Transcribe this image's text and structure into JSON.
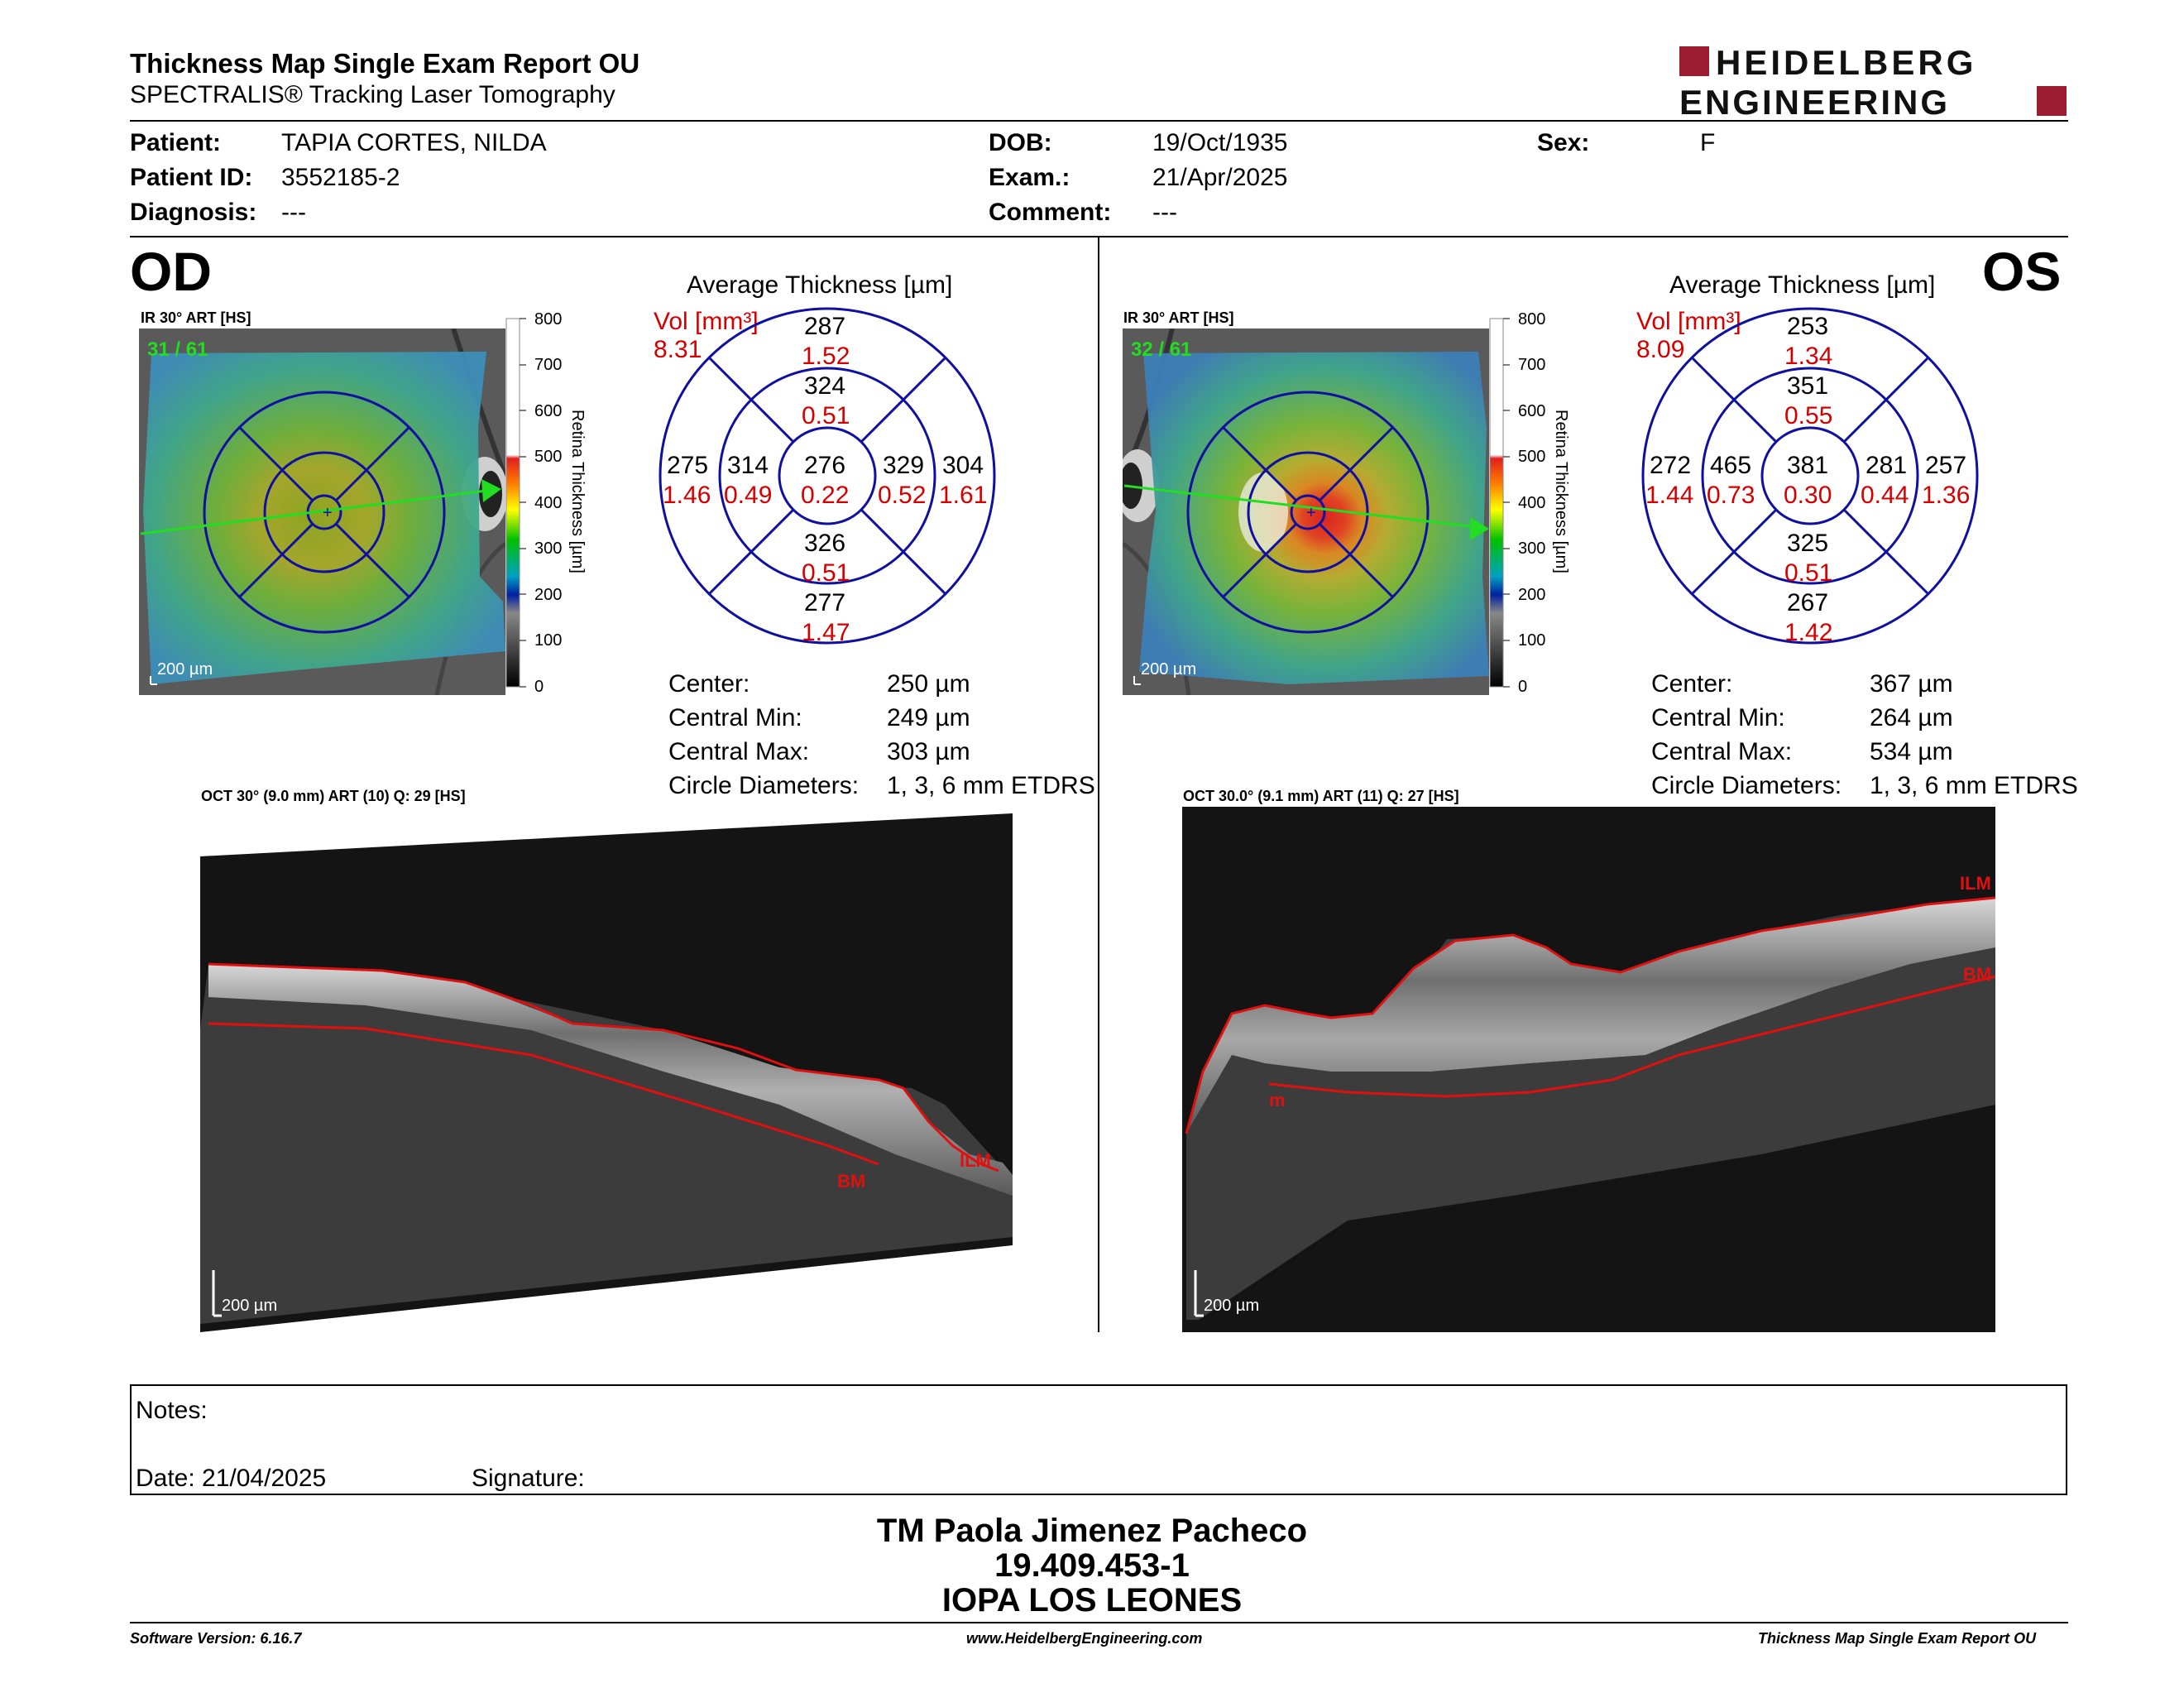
{
  "header": {
    "title": "Thickness Map Single Exam Report OU",
    "subtitle": "SPECTRALIS® Tracking Laser Tomography",
    "logo_line1": "HEIDELBERG",
    "logo_line2": "ENGINEERING"
  },
  "patient": {
    "patient_label": "Patient:",
    "patient_value": "TAPIA CORTES, NILDA",
    "id_label": "Patient ID:",
    "id_value": "3552185-2",
    "diagnosis_label": "Diagnosis:",
    "diagnosis_value": "---",
    "dob_label": "DOB:",
    "dob_value": "19/Oct/1935",
    "exam_label": "Exam.:",
    "exam_value": "21/Apr/2025",
    "comment_label": "Comment:",
    "comment_value": "---",
    "sex_label": "Sex:",
    "sex_value": "F"
  },
  "od": {
    "eye": "OD",
    "ir_label": "IR 30° ART [HS]",
    "frames": "31 / 61",
    "scale": "200 µm",
    "avg_title": "Average Thickness [µm]",
    "vol_label": "Vol [mm³]",
    "vol_total": "8.31",
    "grid": {
      "outer_top": "287",
      "outer_top_vol": "1.52",
      "inner_top": "324",
      "inner_top_vol": "0.51",
      "outer_left": "275",
      "outer_left_vol": "1.46",
      "inner_left": "314",
      "inner_left_vol": "0.49",
      "center": "276",
      "center_vol": "0.22",
      "inner_right": "329",
      "inner_right_vol": "0.52",
      "outer_right": "304",
      "outer_right_vol": "1.61",
      "inner_bottom": "326",
      "inner_bottom_vol": "0.51",
      "outer_bottom": "277",
      "outer_bottom_vol": "1.47"
    },
    "stats": {
      "center_label": "Center:",
      "center_value": "250 µm",
      "min_label": "Central Min:",
      "min_value": "249 µm",
      "max_label": "Central Max:",
      "max_value": "303 µm",
      "diam_label": "Circle Diameters:",
      "diam_value": "1, 3, 6 mm ETDRS"
    },
    "oct_label": "OCT 30° (9.0 mm) ART (10) Q: 29 [HS]",
    "oct_scale": "200 µm",
    "ilm": "ILM",
    "bm": "BM"
  },
  "os": {
    "eye": "OS",
    "ir_label": "IR 30° ART [HS]",
    "frames": "32 / 61",
    "scale": "200 µm",
    "avg_title": "Average Thickness [µm]",
    "vol_label": "Vol [mm³]",
    "vol_total": "8.09",
    "grid": {
      "outer_top": "253",
      "outer_top_vol": "1.34",
      "inner_top": "351",
      "inner_top_vol": "0.55",
      "outer_left": "272",
      "outer_left_vol": "1.44",
      "inner_left": "465",
      "inner_left_vol": "0.73",
      "center": "381",
      "center_vol": "0.30",
      "inner_right": "281",
      "inner_right_vol": "0.44",
      "outer_right": "257",
      "outer_right_vol": "1.36",
      "inner_bottom": "325",
      "inner_bottom_vol": "0.51",
      "outer_bottom": "267",
      "outer_bottom_vol": "1.42"
    },
    "stats": {
      "center_label": "Center:",
      "center_value": "367 µm",
      "min_label": "Central Min:",
      "min_value": "264 µm",
      "max_label": "Central Max:",
      "max_value": "534 µm",
      "diam_label": "Circle Diameters:",
      "diam_value": "1, 3, 6 mm ETDRS"
    },
    "oct_label": "OCT 30.0° (9.1 mm) ART (11) Q: 27 [HS]",
    "oct_scale": "200 µm",
    "ilm": "ILM",
    "bm": "BM",
    "extra_marker": "m"
  },
  "colorbar": {
    "ticks": [
      "800",
      "700",
      "600",
      "500",
      "400",
      "300",
      "200",
      "100",
      "0"
    ],
    "label": "Retina Thickness [µm]"
  },
  "notes": {
    "notes_label": "Notes:",
    "date_label": "Date: 21/04/2025",
    "signature_label": "Signature:"
  },
  "signature": {
    "name": "TM Paola Jimenez Pacheco",
    "id": "19.409.453-1",
    "clinic": "IOPA LOS LEONES"
  },
  "footer": {
    "software": "Software Version: 6.16.7",
    "website": "www.HeidelbergEngineering.com",
    "report": "Thickness Map Single Exam Report OU"
  },
  "colors": {
    "brand": "#9b1b30",
    "grid_blue": "#1010a0",
    "volume_red": "#d40000",
    "scan_green": "#22dd22",
    "seg_red": "#e01010"
  }
}
